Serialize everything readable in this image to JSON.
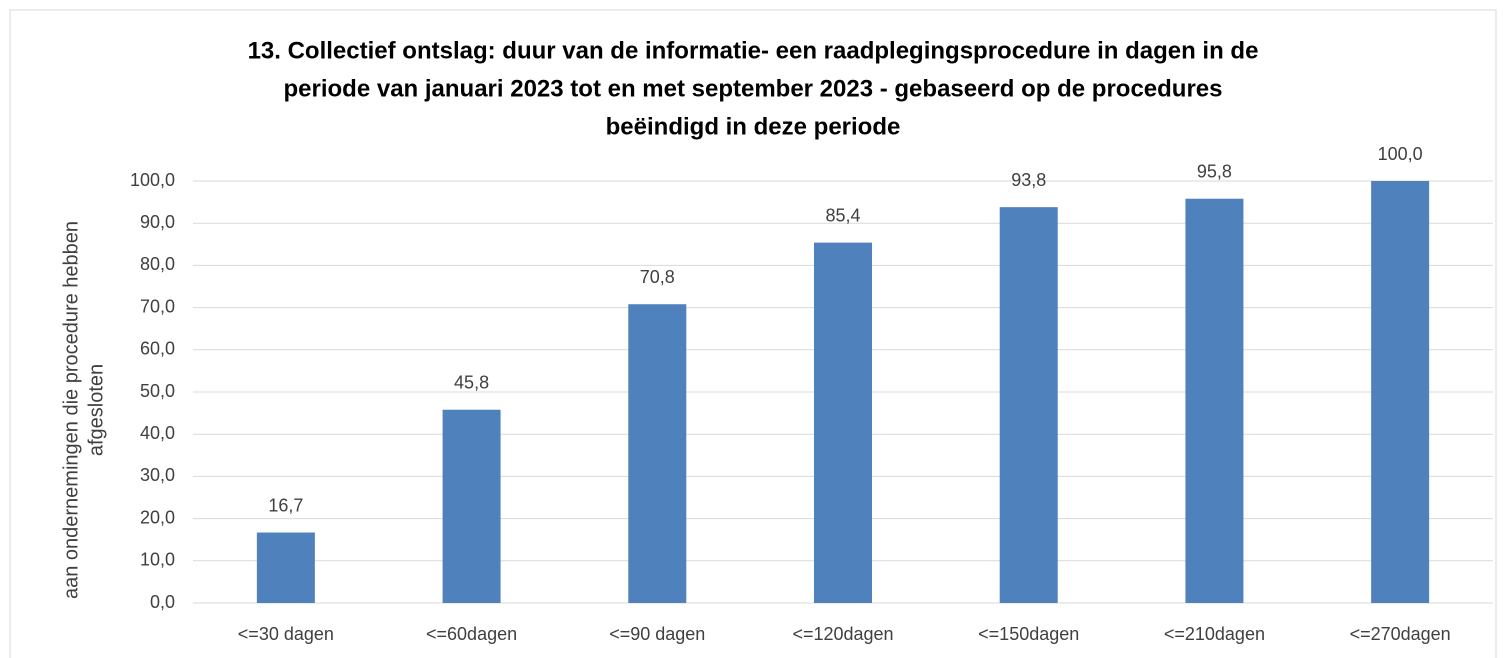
{
  "chart_data": {
    "type": "bar",
    "title": [
      "13. Collectief ontslag: duur van de informatie- een raadplegingsprocedure in dagen in de",
      "periode van januari 2023 tot en met september 2023 - gebaseerd op de procedures",
      "beëindigd in deze periode"
    ],
    "ylabel": [
      "aan ondernemingen die procedure hebben",
      "afgesloten"
    ],
    "categories": [
      "<=30 dagen",
      "<=60dagen",
      "<=90 dagen",
      "<=120dagen",
      "<=150dagen",
      "<=210dagen",
      "<=270dagen"
    ],
    "values": [
      16.7,
      45.8,
      70.8,
      85.4,
      93.8,
      95.8,
      100.0
    ],
    "value_labels": [
      "16,7",
      "45,8",
      "70,8",
      "85,4",
      "93,8",
      "95,8",
      "100,0"
    ],
    "color": "#4f81bd",
    "ylim": [
      0,
      100
    ],
    "yticks": [
      {
        "value": 0,
        "label": "0,0"
      },
      {
        "value": 10,
        "label": "10,0"
      },
      {
        "value": 20,
        "label": "20,0"
      },
      {
        "value": 30,
        "label": "30,0"
      },
      {
        "value": 40,
        "label": "40,0"
      },
      {
        "value": 50,
        "label": "50,0"
      },
      {
        "value": 60,
        "label": "60,0"
      },
      {
        "value": 70,
        "label": "70,0"
      },
      {
        "value": 80,
        "label": "80,0"
      },
      {
        "value": 90,
        "label": "90,0"
      },
      {
        "value": 100,
        "label": "100,0"
      }
    ],
    "grid": true
  }
}
